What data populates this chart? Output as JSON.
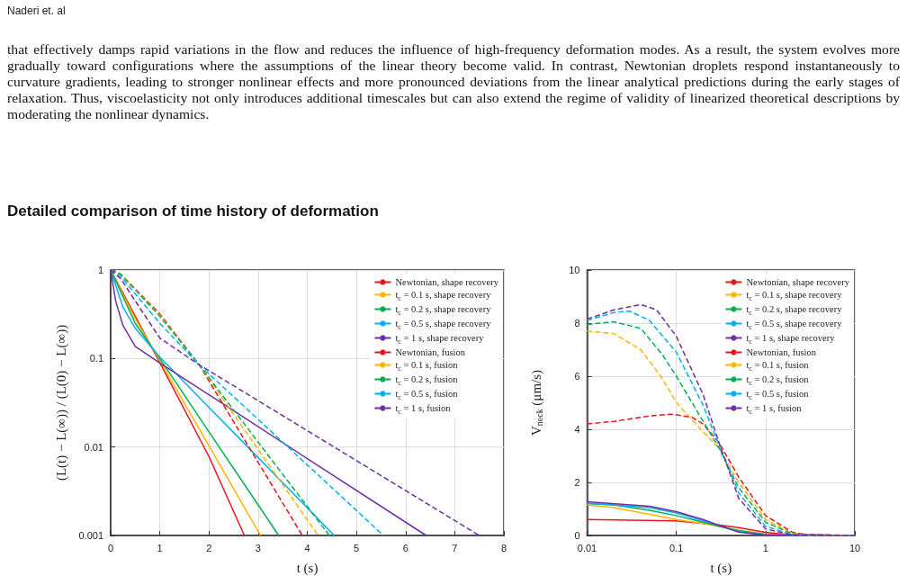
{
  "chart_data": [
    {
      "type": "line",
      "title": "Detailed comparison of time history of deformation",
      "annotations": [
        "Naderi et. al",
        "that effectively damps rapid variations in the flow and reduces the influence of high-frequency deformation modes. As a result, the system evolves more gradually toward configurations where the assumptions of the linear theory become valid. In contrast, Newtonian droplets respond instantaneously to curvature gradients, leading to stronger nonlinear effects and more pronounced deviations from the linear analytical predictions during the early stages of relaxation. Thus, viscoelasticity not only introduces additional timescales but can also extend the regime of validity of linearized theoretical descriptions by moderating the nonlinear dynamics."
      ],
      "xlabel": "t (s)",
      "ylabel": "(L(t) − L(∞)) / (L(0) − L(∞))",
      "log": "y",
      "xlim": [
        0,
        8
      ],
      "ylim": [
        0.001,
        1
      ],
      "xticks": [
        0,
        1,
        2,
        3,
        4,
        5,
        6,
        7,
        8
      ],
      "yticks": [
        0.001,
        0.01,
        0.1,
        1
      ],
      "grid": true,
      "legend": "top right",
      "marker": "none",
      "series": [
        {
          "name": "Newtonian, shape recovery",
          "color": "#e8141b",
          "line_style": "solid",
          "x": [
            0,
            0.5,
            1,
            2,
            2.72
          ],
          "values": [
            1,
            0.3,
            0.09,
            0.0078,
            0.001
          ]
        },
        {
          "name": "t$_{c}$ = 0.1 s, shape recovery",
          "color": "#ffb400",
          "line_style": "solid",
          "x": [
            0,
            0.5,
            1,
            2,
            3.05
          ],
          "values": [
            1,
            0.28,
            0.095,
            0.0103,
            0.001
          ]
        },
        {
          "name": "t$_{c}$ = 0.2 s, shape recovery",
          "color": "#00b050",
          "line_style": "solid",
          "x": [
            0,
            0.5,
            1,
            2,
            3.42
          ],
          "values": [
            1,
            0.25,
            0.1,
            0.0148,
            0.001
          ]
        },
        {
          "name": "t$_{c}$ = 0.5 s, shape recovery",
          "color": "#00b0f0",
          "line_style": "solid",
          "x": [
            0,
            0.25,
            0.5,
            1,
            2,
            3,
            4.55
          ],
          "values": [
            1,
            0.38,
            0.22,
            0.104,
            0.028,
            0.0076,
            0.001
          ]
        },
        {
          "name": "t$_{c}$ = 1 s, shape recovery",
          "color": "#7030a0",
          "line_style": "solid",
          "x": [
            0,
            0.1,
            0.25,
            0.5,
            1,
            2,
            4,
            6.42
          ],
          "values": [
            1,
            0.45,
            0.236,
            0.137,
            0.089,
            0.039,
            0.0074,
            0.001
          ]
        },
        {
          "name": "Newtonian, fusion",
          "color": "#e8141b",
          "line_style": "dashed",
          "x": [
            0,
            0.2,
            1,
            1.8,
            3.9
          ],
          "values": [
            1,
            0.9,
            0.32,
            0.085,
            0.001
          ]
        },
        {
          "name": "t$_{c}$ = 0.1 s, fusion",
          "color": "#ffb400",
          "line_style": "dashed",
          "x": [
            0,
            0.2,
            1,
            1.8,
            4.22
          ],
          "values": [
            1,
            0.9,
            0.31,
            0.085,
            0.001
          ]
        },
        {
          "name": "t$_{c}$ = 0.2 s, fusion",
          "color": "#00b050",
          "line_style": "dashed",
          "x": [
            0,
            0.2,
            1,
            1.8,
            4.45
          ],
          "values": [
            1,
            0.9,
            0.3,
            0.085,
            0.001
          ]
        },
        {
          "name": "t$_{c}$ = 0.5 s, fusion",
          "color": "#00b0f0",
          "line_style": "dashed",
          "x": [
            0,
            0.2,
            1,
            1.8,
            5.55
          ],
          "values": [
            1,
            0.85,
            0.25,
            0.085,
            0.001
          ]
        },
        {
          "name": "t$_{c}$ = 1 s, fusion",
          "color": "#7030a0",
          "line_style": "dashed",
          "x": [
            0,
            0.2,
            1,
            1.8,
            7.5
          ],
          "values": [
            1,
            0.8,
            0.17,
            0.085,
            0.001
          ]
        }
      ]
    },
    {
      "type": "line",
      "xlabel": "t (s)",
      "ylabel": "V$_{neck}$ (μm/s)",
      "log": "x",
      "xlim": [
        0.01,
        10
      ],
      "ylim": [
        0,
        10
      ],
      "xticks": [
        0.01,
        0.1,
        1,
        10
      ],
      "yticks": [
        0,
        2,
        4,
        6,
        8,
        10
      ],
      "grid": true,
      "legend": "top right",
      "marker": "none",
      "series": [
        {
          "name": "Newtonian, shape recovery",
          "color": "#e8141b",
          "line_style": "solid",
          "x": [
            0.01,
            0.1,
            0.3,
            0.5,
            1,
            2,
            10
          ],
          "values": [
            0.6,
            0.55,
            0.4,
            0.3,
            0.12,
            0.02,
            0
          ]
        },
        {
          "name": "t$_{c}$ = 0.1 s, shape recovery",
          "color": "#ffb400",
          "line_style": "solid",
          "x": [
            0.01,
            0.02,
            0.05,
            0.1,
            0.2,
            0.3,
            0.5,
            1,
            2,
            10
          ],
          "values": [
            1.15,
            1.05,
            0.8,
            0.6,
            0.45,
            0.35,
            0.2,
            0.05,
            0.01,
            0
          ]
        },
        {
          "name": "t$_{c}$ = 0.2 s, shape recovery",
          "color": "#00b050",
          "line_style": "solid",
          "x": [
            0.01,
            0.02,
            0.05,
            0.1,
            0.2,
            0.3,
            0.5,
            1,
            10
          ],
          "values": [
            1.2,
            1.15,
            0.95,
            0.75,
            0.5,
            0.35,
            0.18,
            0.04,
            0
          ]
        },
        {
          "name": "t$_{c}$ = 0.5 s, shape recovery",
          "color": "#00b0f0",
          "line_style": "solid",
          "x": [
            0.01,
            0.05,
            0.1,
            0.2,
            0.3,
            0.5,
            1,
            10
          ],
          "values": [
            1.22,
            1.05,
            0.85,
            0.55,
            0.38,
            0.15,
            0.03,
            0
          ]
        },
        {
          "name": "t$_{c}$ = 1 s, shape recovery",
          "color": "#7030a0",
          "line_style": "solid",
          "x": [
            0.01,
            0.05,
            0.1,
            0.2,
            0.3,
            0.5,
            1,
            10
          ],
          "values": [
            1.27,
            1.1,
            0.9,
            0.6,
            0.38,
            0.13,
            0.02,
            0
          ]
        },
        {
          "name": "Newtonian, fusion",
          "color": "#e8141b",
          "line_style": "dashed",
          "x": [
            0.01,
            0.02,
            0.05,
            0.09,
            0.15,
            0.2,
            0.3,
            0.5,
            1,
            2,
            3,
            10
          ],
          "values": [
            4.2,
            4.3,
            4.5,
            4.57,
            4.45,
            4.2,
            3.5,
            2.2,
            0.75,
            0.12,
            0.02,
            0
          ]
        },
        {
          "name": "t$_{c}$ = 0.1 s, fusion",
          "color": "#ffb400",
          "line_style": "dashed",
          "x": [
            0.01,
            0.02,
            0.04,
            0.07,
            0.1,
            0.2,
            0.3,
            0.5,
            1,
            2,
            3,
            10
          ],
          "values": [
            7.7,
            7.6,
            7,
            5.9,
            5,
            3.9,
            3.3,
            2,
            0.6,
            0.08,
            0.01,
            0
          ]
        },
        {
          "name": "t$_{c}$ = 0.2 s, fusion",
          "color": "#00b050",
          "line_style": "dashed",
          "x": [
            0.01,
            0.02,
            0.04,
            0.07,
            0.1,
            0.2,
            0.3,
            0.5,
            1,
            2,
            10
          ],
          "values": [
            7.95,
            8.05,
            7.8,
            6.8,
            6,
            4.3,
            3.3,
            1.8,
            0.5,
            0.06,
            0
          ]
        },
        {
          "name": "t$_{c}$ = 0.5 s, fusion",
          "color": "#00b0f0",
          "line_style": "dashed",
          "x": [
            0.01,
            0.02,
            0.03,
            0.05,
            0.1,
            0.2,
            0.3,
            0.5,
            1,
            2,
            10
          ],
          "values": [
            8.1,
            8.4,
            8.45,
            8.1,
            6.9,
            4.9,
            3.4,
            1.6,
            0.35,
            0.03,
            0
          ]
        },
        {
          "name": "t$_{c}$ = 1 s, fusion",
          "color": "#7030a0",
          "line_style": "dashed",
          "x": [
            0.01,
            0.02,
            0.04,
            0.06,
            0.1,
            0.2,
            0.3,
            0.5,
            1,
            2,
            10
          ],
          "values": [
            8.15,
            8.5,
            8.7,
            8.5,
            7.5,
            5.3,
            3.5,
            1.4,
            0.25,
            0.02,
            0
          ]
        }
      ]
    }
  ]
}
